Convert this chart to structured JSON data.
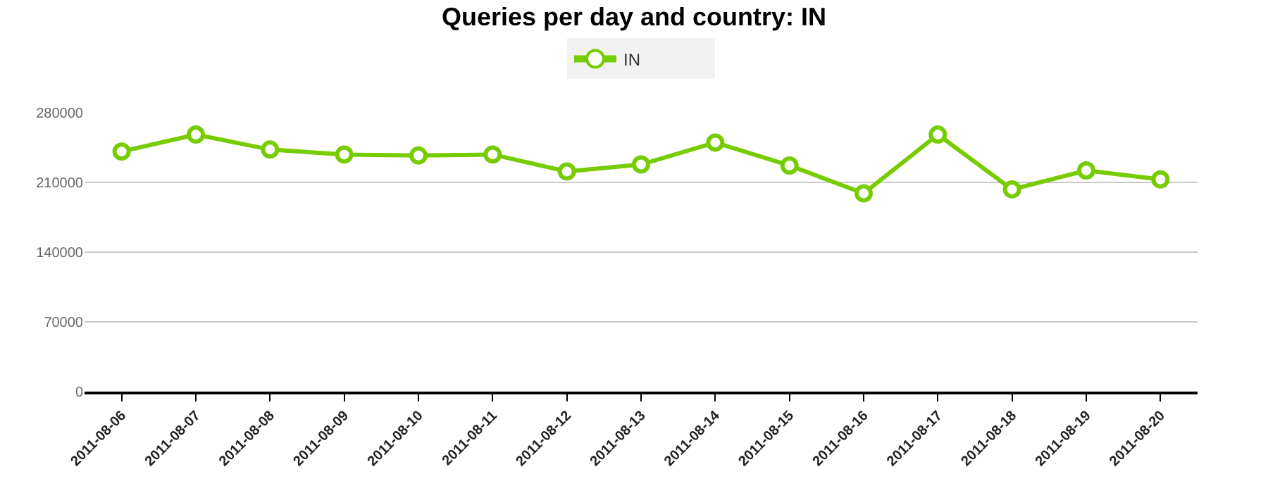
{
  "chart_data": {
    "type": "line",
    "title": "Queries per day and country: IN",
    "categories": [
      "2011-08-06",
      "2011-08-07",
      "2011-08-08",
      "2011-08-09",
      "2011-08-10",
      "2011-08-11",
      "2011-08-12",
      "2011-08-13",
      "2011-08-14",
      "2011-08-15",
      "2011-08-16",
      "2011-08-17",
      "2011-08-18",
      "2011-08-19",
      "2011-08-20"
    ],
    "series": [
      {
        "name": "IN",
        "color": "#77cc00",
        "values": [
          241000,
          258000,
          243000,
          238000,
          237000,
          238000,
          221000,
          228000,
          250000,
          227000,
          199000,
          258000,
          203000,
          222000,
          213000
        ]
      }
    ],
    "ylim": [
      0,
      280000
    ],
    "yticks": [
      0,
      70000,
      140000,
      210000,
      280000
    ],
    "grid": "y",
    "legend": "top",
    "marker": "circle",
    "line_style": "solid"
  }
}
